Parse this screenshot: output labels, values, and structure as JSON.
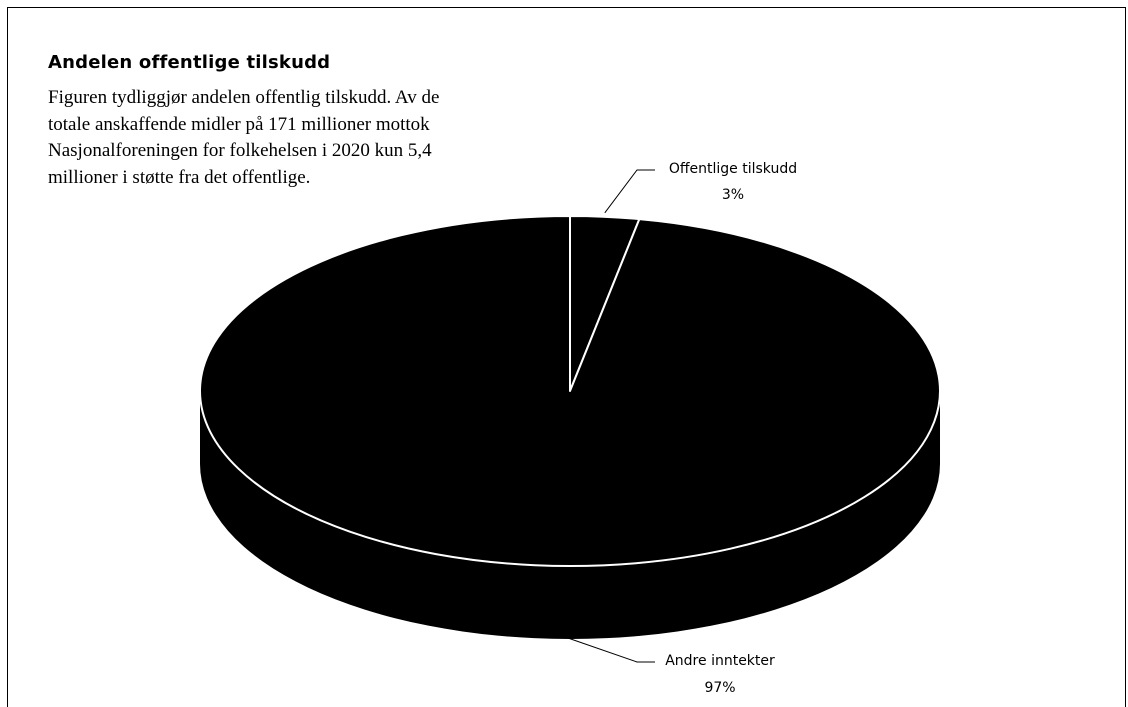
{
  "text": {
    "heading": "Andelen offentlige tilskudd",
    "description_lines": [
      "Figuren tydliggjør andelen offentlig tilskudd. Av de",
      "totale anskaffende midler på 171 millioner mottok",
      "Nasjonalforeningen for folkehelsen  i 2020 kun 5,4",
      "millioner i støtte fra det offentlige."
    ]
  },
  "chart_data": {
    "type": "pie",
    "style": "3d",
    "labels": [
      "Offentlige tilskudd",
      "Andre inntekter"
    ],
    "values": [
      3,
      97
    ],
    "value_labels": [
      "3%",
      "97%"
    ],
    "colors": [
      "#000000",
      "#000000"
    ],
    "outline_color": "#ffffff"
  }
}
